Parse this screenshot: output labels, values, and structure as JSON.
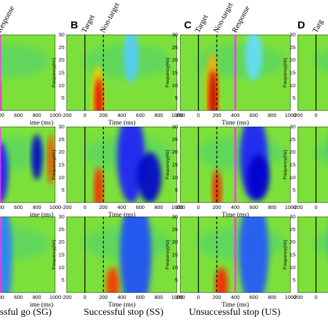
{
  "figure": {
    "panel_letters": [
      "B",
      "C",
      "D"
    ],
    "columns": [
      {
        "id": "SG",
        "caption": "ssful go (SG)",
        "events": [
          {
            "label": "Response",
            "style": "magenta"
          }
        ]
      },
      {
        "id": "SS",
        "caption": "Successful stop (SS)",
        "events": [
          {
            "label": "Target",
            "style": "solid"
          },
          {
            "label": "Non-target",
            "style": "dashed"
          }
        ]
      },
      {
        "id": "US",
        "caption": "Unsuccessful stop (US)",
        "events": [
          {
            "label": "Target",
            "style": "solid"
          },
          {
            "label": "Non-target",
            "style": "dashed"
          },
          {
            "label": "Response",
            "style": "magenta"
          }
        ]
      },
      {
        "id": "D",
        "caption": "",
        "events": [
          {
            "label": "Targ",
            "style": "solid"
          }
        ]
      }
    ],
    "x_axis": {
      "label": "Time (ms)",
      "label_sg": "ime (ms)",
      "ticks": [
        "-200",
        "0",
        "200",
        "400",
        "600",
        "800",
        "1000"
      ],
      "ticks_sg": [
        "400",
        "600",
        "800",
        "1000"
      ]
    },
    "y_axis": {
      "label": "Frequency(Hz)",
      "ticks": [
        "5",
        "10",
        "15",
        "20",
        "25",
        "30"
      ]
    }
  },
  "chart_data": {
    "type": "heatmap",
    "x_unit": "ms",
    "y_unit": "Hz",
    "x_range": [
      -200,
      1000
    ],
    "y_range": [
      0,
      30
    ],
    "colormap": "jet",
    "event_times_ms": {
      "target": 0,
      "non_target": 200,
      "response": 400
    },
    "rows": 3,
    "columns": [
      "SG",
      "SS",
      "US",
      "D"
    ]
  }
}
